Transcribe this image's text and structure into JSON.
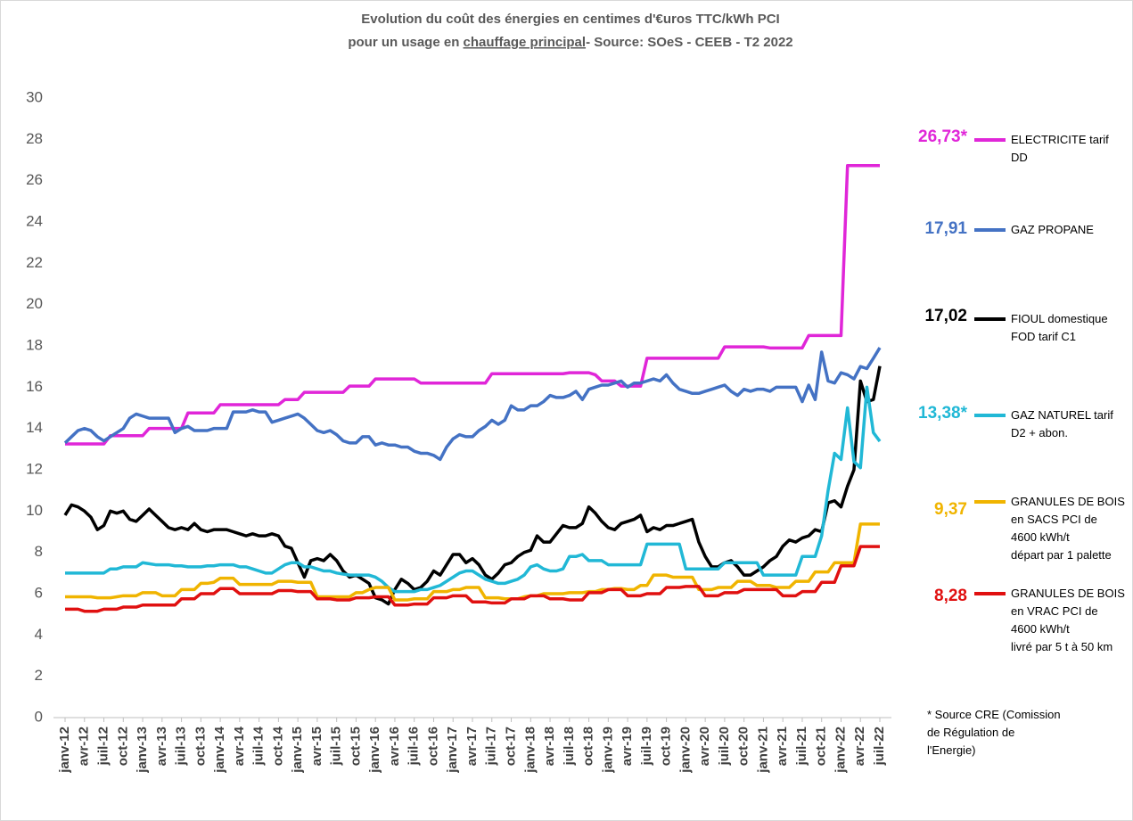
{
  "chart_data": {
    "type": "line",
    "title": "Evolution du coût des énergies en centimes d'€uros TTC/kWh PCI",
    "subtitle": [
      "pour un usage en ",
      "chauffage principal",
      "- Source: SOeS - CEEB - T2 2022"
    ],
    "footnote": "* Source CRE (Comission\nde Régulation de\nl'Energie)",
    "ylim": [
      0,
      30
    ],
    "yticks": [
      0,
      2,
      4,
      6,
      8,
      10,
      12,
      14,
      16,
      18,
      20,
      22,
      24,
      26,
      28,
      30
    ],
    "grid": false,
    "legend": "right",
    "categories": [
      "janv-12",
      null,
      null,
      "avr-12",
      null,
      null,
      "juil-12",
      null,
      null,
      "oct-12",
      null,
      null,
      "janv-13",
      null,
      null,
      "avr-13",
      null,
      null,
      "juil-13",
      null,
      null,
      "oct-13",
      null,
      null,
      "janv-14",
      null,
      null,
      "avr-14",
      null,
      null,
      "juil-14",
      null,
      null,
      "oct-14",
      null,
      null,
      "janv-15",
      null,
      null,
      "avr-15",
      null,
      null,
      "juil-15",
      null,
      null,
      "oct-15",
      null,
      null,
      "janv-16",
      null,
      null,
      "avr-16",
      null,
      null,
      "juil-16",
      null,
      null,
      "oct-16",
      null,
      null,
      "janv-17",
      null,
      null,
      "avr-17",
      null,
      null,
      "juil-17",
      null,
      null,
      "oct-17",
      null,
      null,
      "janv-18",
      null,
      null,
      "avr-18",
      null,
      null,
      "juil-18",
      null,
      null,
      "oct-18",
      null,
      null,
      "janv-19",
      null,
      null,
      "avr-19",
      null,
      null,
      "juil-19",
      null,
      null,
      "oct-19",
      null,
      null,
      "janv-20",
      null,
      null,
      "avr-20",
      null,
      null,
      "juil-20",
      null,
      null,
      "oct-20",
      null,
      null,
      "janv-21",
      null,
      null,
      "avr-21",
      null,
      null,
      "juil-21",
      null,
      null,
      "oct-21",
      null,
      null,
      "janv-22",
      null,
      null,
      "avr-22",
      null,
      null,
      "juil-22"
    ],
    "series": [
      {
        "name": "ELECTRICITE tarif\nDD",
        "color": "#e026d8",
        "end_label": "26,73*",
        "values": [
          13.25,
          13.25,
          13.25,
          13.25,
          13.25,
          13.25,
          13.25,
          13.65,
          13.65,
          13.65,
          13.65,
          13.65,
          13.65,
          14.0,
          14.0,
          14.0,
          14.0,
          14.0,
          14.0,
          14.75,
          14.75,
          14.75,
          14.75,
          14.75,
          15.15,
          15.15,
          15.15,
          15.15,
          15.15,
          15.15,
          15.15,
          15.15,
          15.15,
          15.15,
          15.4,
          15.4,
          15.4,
          15.75,
          15.75,
          15.75,
          15.75,
          15.75,
          15.75,
          15.75,
          16.05,
          16.05,
          16.05,
          16.05,
          16.4,
          16.4,
          16.4,
          16.4,
          16.4,
          16.4,
          16.4,
          16.2,
          16.2,
          16.2,
          16.2,
          16.2,
          16.2,
          16.2,
          16.2,
          16.2,
          16.2,
          16.2,
          16.65,
          16.65,
          16.65,
          16.65,
          16.65,
          16.65,
          16.65,
          16.65,
          16.65,
          16.65,
          16.65,
          16.65,
          16.7,
          16.7,
          16.7,
          16.7,
          16.6,
          16.3,
          16.3,
          16.3,
          16.05,
          16.05,
          16.05,
          16.05,
          17.4,
          17.4,
          17.4,
          17.4,
          17.4,
          17.4,
          17.4,
          17.4,
          17.4,
          17.4,
          17.4,
          17.4,
          17.95,
          17.95,
          17.95,
          17.95,
          17.95,
          17.95,
          17.95,
          17.9,
          17.9,
          17.9,
          17.9,
          17.9,
          17.9,
          18.5,
          18.5,
          18.5,
          18.5,
          18.5,
          18.5,
          26.73,
          26.73,
          26.73,
          26.73,
          26.73,
          26.73
        ]
      },
      {
        "name": "GAZ PROPANE",
        "color": "#4472c4",
        "end_label": "17,91",
        "values": [
          13.3,
          13.6,
          13.9,
          14.0,
          13.9,
          13.6,
          13.4,
          13.6,
          13.8,
          14.0,
          14.5,
          14.7,
          14.6,
          14.5,
          14.5,
          14.5,
          14.5,
          13.8,
          14.0,
          14.1,
          13.9,
          13.9,
          13.9,
          14.0,
          14.0,
          14.0,
          14.8,
          14.8,
          14.8,
          14.9,
          14.8,
          14.8,
          14.3,
          14.4,
          14.5,
          14.6,
          14.7,
          14.5,
          14.2,
          13.9,
          13.8,
          13.9,
          13.7,
          13.4,
          13.3,
          13.3,
          13.6,
          13.6,
          13.2,
          13.3,
          13.2,
          13.2,
          13.1,
          13.1,
          12.9,
          12.8,
          12.8,
          12.7,
          12.5,
          13.1,
          13.5,
          13.7,
          13.6,
          13.6,
          13.9,
          14.1,
          14.4,
          14.2,
          14.4,
          15.1,
          14.9,
          14.9,
          15.1,
          15.1,
          15.3,
          15.6,
          15.5,
          15.5,
          15.6,
          15.8,
          15.4,
          15.9,
          16.0,
          16.1,
          16.1,
          16.2,
          16.3,
          16.0,
          16.2,
          16.2,
          16.3,
          16.4,
          16.3,
          16.6,
          16.2,
          15.9,
          15.8,
          15.7,
          15.7,
          15.8,
          15.9,
          16.0,
          16.1,
          15.8,
          15.6,
          15.9,
          15.8,
          15.9,
          15.9,
          15.8,
          16.0,
          16.0,
          16.0,
          16.0,
          15.3,
          16.1,
          15.4,
          17.7,
          16.3,
          16.2,
          16.7,
          16.6,
          16.4,
          17.0,
          16.9,
          17.4,
          17.91
        ]
      },
      {
        "name": "FIOUL domestique\nFOD tarif C1",
        "color": "#000000",
        "end_label": "17,02",
        "values": [
          9.8,
          10.3,
          10.2,
          10.0,
          9.7,
          9.1,
          9.3,
          10.0,
          9.9,
          10.0,
          9.6,
          9.5,
          9.8,
          10.1,
          9.8,
          9.5,
          9.2,
          9.1,
          9.2,
          9.1,
          9.4,
          9.1,
          9.0,
          9.1,
          9.1,
          9.1,
          9.0,
          8.9,
          8.8,
          8.9,
          8.8,
          8.8,
          8.9,
          8.8,
          8.3,
          8.2,
          7.5,
          6.8,
          7.6,
          7.7,
          7.6,
          7.9,
          7.6,
          7.1,
          6.8,
          6.9,
          6.7,
          6.5,
          5.8,
          5.7,
          5.5,
          6.2,
          6.7,
          6.5,
          6.2,
          6.3,
          6.6,
          7.1,
          6.9,
          7.4,
          7.9,
          7.9,
          7.5,
          7.7,
          7.4,
          6.9,
          6.7,
          7.0,
          7.4,
          7.5,
          7.8,
          8.0,
          8.1,
          8.8,
          8.5,
          8.5,
          8.9,
          9.3,
          9.2,
          9.2,
          9.4,
          10.2,
          9.9,
          9.5,
          9.2,
          9.1,
          9.4,
          9.5,
          9.6,
          9.8,
          9.0,
          9.2,
          9.1,
          9.3,
          9.3,
          9.4,
          9.5,
          9.6,
          8.5,
          7.8,
          7.3,
          7.3,
          7.5,
          7.6,
          7.3,
          6.9,
          6.9,
          7.1,
          7.3,
          7.6,
          7.8,
          8.3,
          8.6,
          8.5,
          8.7,
          8.8,
          9.1,
          9.0,
          10.4,
          10.5,
          10.2,
          11.2,
          12.0,
          16.3,
          15.3,
          15.4,
          17.02
        ]
      },
      {
        "name": "GAZ NATUREL tarif\nD2 + abon.",
        "color": "#21b8d6",
        "end_label": "13,38*",
        "values": [
          7.0,
          7.0,
          7.0,
          7.0,
          7.0,
          7.0,
          7.0,
          7.2,
          7.2,
          7.3,
          7.3,
          7.3,
          7.5,
          7.45,
          7.4,
          7.4,
          7.4,
          7.35,
          7.35,
          7.3,
          7.3,
          7.3,
          7.35,
          7.35,
          7.4,
          7.4,
          7.4,
          7.3,
          7.3,
          7.2,
          7.1,
          7.0,
          7.0,
          7.2,
          7.4,
          7.5,
          7.5,
          7.3,
          7.3,
          7.2,
          7.1,
          7.1,
          7.0,
          6.95,
          6.9,
          6.9,
          6.9,
          6.9,
          6.8,
          6.6,
          6.3,
          6.1,
          6.1,
          6.1,
          6.1,
          6.2,
          6.2,
          6.3,
          6.4,
          6.6,
          6.8,
          7.0,
          7.1,
          7.1,
          6.9,
          6.7,
          6.6,
          6.5,
          6.5,
          6.6,
          6.7,
          6.9,
          7.3,
          7.4,
          7.2,
          7.1,
          7.1,
          7.2,
          7.8,
          7.8,
          7.9,
          7.6,
          7.6,
          7.6,
          7.4,
          7.4,
          7.4,
          7.4,
          7.4,
          7.4,
          8.4,
          8.4,
          8.4,
          8.4,
          8.4,
          8.4,
          7.2,
          7.2,
          7.2,
          7.2,
          7.2,
          7.2,
          7.5,
          7.5,
          7.5,
          7.5,
          7.5,
          7.5,
          6.9,
          6.9,
          6.9,
          6.9,
          6.9,
          6.9,
          7.8,
          7.8,
          7.8,
          8.8,
          11.0,
          12.8,
          12.5,
          15.0,
          12.4,
          12.1,
          16.0,
          13.8,
          13.38
        ]
      },
      {
        "name": "GRANULES DE BOIS\nen SACS PCI de\n4600 kWh/t\n départ par 1 palette",
        "color": "#f0b400",
        "end_label": "9,37",
        "values": [
          5.85,
          5.85,
          5.85,
          5.85,
          5.85,
          5.8,
          5.8,
          5.8,
          5.85,
          5.9,
          5.9,
          5.9,
          6.05,
          6.05,
          6.05,
          5.9,
          5.9,
          5.9,
          6.2,
          6.2,
          6.2,
          6.5,
          6.5,
          6.55,
          6.75,
          6.75,
          6.75,
          6.45,
          6.45,
          6.45,
          6.45,
          6.45,
          6.45,
          6.6,
          6.6,
          6.6,
          6.55,
          6.55,
          6.55,
          5.85,
          5.85,
          5.85,
          5.85,
          5.85,
          5.85,
          6.05,
          6.05,
          6.2,
          6.3,
          6.3,
          6.3,
          5.7,
          5.7,
          5.7,
          5.75,
          5.75,
          5.75,
          6.1,
          6.1,
          6.1,
          6.2,
          6.2,
          6.3,
          6.3,
          6.3,
          5.8,
          5.8,
          5.8,
          5.75,
          5.75,
          5.75,
          5.85,
          5.9,
          5.9,
          6.0,
          6.0,
          6.0,
          6.0,
          6.05,
          6.05,
          6.05,
          6.1,
          6.1,
          6.2,
          6.2,
          6.25,
          6.25,
          6.2,
          6.2,
          6.4,
          6.4,
          6.9,
          6.9,
          6.9,
          6.8,
          6.8,
          6.8,
          6.8,
          6.2,
          6.2,
          6.2,
          6.3,
          6.3,
          6.3,
          6.6,
          6.6,
          6.6,
          6.4,
          6.4,
          6.4,
          6.3,
          6.3,
          6.3,
          6.6,
          6.6,
          6.6,
          7.05,
          7.05,
          7.05,
          7.5,
          7.5,
          7.5,
          7.5,
          9.37,
          9.37,
          9.37,
          9.37
        ]
      },
      {
        "name": "GRANULES DE BOIS\nen VRAC  PCI de\n4600 kWh/t\n livré par 5 t à 50 km",
        "color": "#e01010",
        "end_label": "8,28",
        "values": [
          5.25,
          5.25,
          5.25,
          5.15,
          5.15,
          5.15,
          5.25,
          5.25,
          5.25,
          5.35,
          5.35,
          5.35,
          5.45,
          5.45,
          5.45,
          5.45,
          5.45,
          5.45,
          5.75,
          5.75,
          5.75,
          6.0,
          6.0,
          6.0,
          6.25,
          6.25,
          6.25,
          6.0,
          6.0,
          6.0,
          6.0,
          6.0,
          6.0,
          6.15,
          6.15,
          6.15,
          6.1,
          6.1,
          6.1,
          5.75,
          5.75,
          5.75,
          5.7,
          5.7,
          5.7,
          5.8,
          5.8,
          5.8,
          5.85,
          5.85,
          5.85,
          5.45,
          5.45,
          5.45,
          5.5,
          5.5,
          5.5,
          5.8,
          5.8,
          5.8,
          5.9,
          5.9,
          5.9,
          5.6,
          5.6,
          5.6,
          5.55,
          5.55,
          5.55,
          5.75,
          5.75,
          5.75,
          5.9,
          5.9,
          5.9,
          5.75,
          5.75,
          5.75,
          5.7,
          5.7,
          5.7,
          6.05,
          6.05,
          6.05,
          6.2,
          6.2,
          6.2,
          5.9,
          5.9,
          5.9,
          6.0,
          6.0,
          6.0,
          6.3,
          6.3,
          6.3,
          6.35,
          6.35,
          6.35,
          5.9,
          5.9,
          5.9,
          6.05,
          6.05,
          6.05,
          6.2,
          6.2,
          6.2,
          6.2,
          6.2,
          6.2,
          5.9,
          5.9,
          5.9,
          6.1,
          6.1,
          6.1,
          6.55,
          6.55,
          6.55,
          7.35,
          7.35,
          7.35,
          8.28,
          8.28,
          8.28,
          8.28
        ]
      }
    ]
  }
}
